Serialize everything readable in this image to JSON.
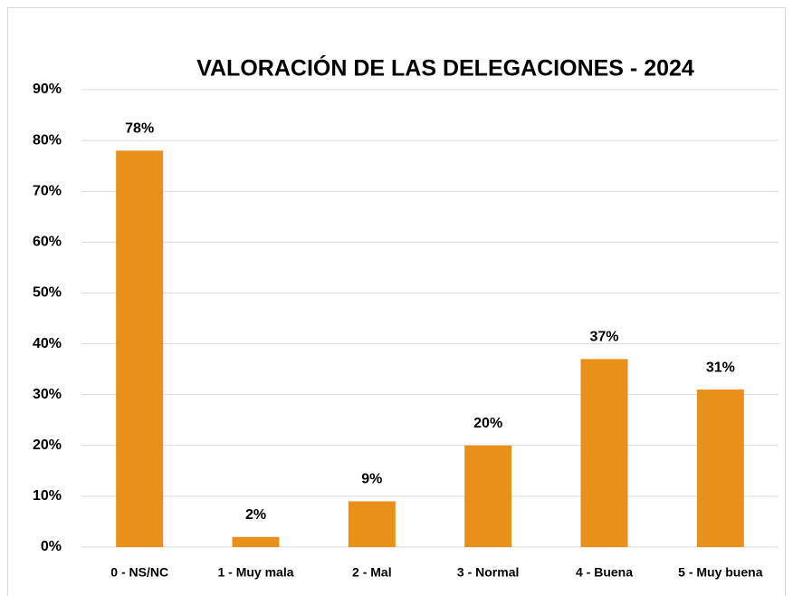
{
  "chart_data": {
    "type": "bar",
    "title": "VALORACIÓN  DE LAS DELEGACIONES - 2024",
    "categories": [
      "0 - NS/NC",
      "1 - Muy mala",
      "2 - Mal",
      "3 - Normal",
      "4 - Buena",
      "5 - Muy buena"
    ],
    "values": [
      78,
      2,
      9,
      20,
      37,
      31
    ],
    "value_labels": [
      "78%",
      "2%",
      "9%",
      "20%",
      "37%",
      "31%"
    ],
    "color": "#e8901a",
    "ylim": [
      0,
      90
    ],
    "yticks": [
      {
        "value": 0,
        "label": "0%"
      },
      {
        "value": 10,
        "label": "10%"
      },
      {
        "value": 20,
        "label": "20%"
      },
      {
        "value": 30,
        "label": "30%"
      },
      {
        "value": 40,
        "label": "40%"
      },
      {
        "value": 50,
        "label": "50%"
      },
      {
        "value": 60,
        "label": "60%"
      },
      {
        "value": 70,
        "label": "70%"
      },
      {
        "value": 80,
        "label": "80%"
      },
      {
        "value": 90,
        "label": "90%"
      }
    ],
    "grid": true
  }
}
